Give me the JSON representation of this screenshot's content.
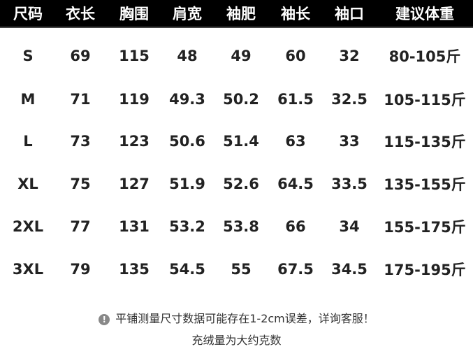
{
  "table": {
    "headers": [
      "尺码",
      "衣长",
      "胸围",
      "肩宽",
      "袖肥",
      "袖长",
      "袖口",
      "建议体重"
    ],
    "rows": [
      [
        "S",
        "69",
        "115",
        "48",
        "49",
        "60",
        "32",
        "80-105斤"
      ],
      [
        "M",
        "71",
        "119",
        "49.3",
        "50.2",
        "61.5",
        "32.5",
        "105-115斤"
      ],
      [
        "L",
        "73",
        "123",
        "50.6",
        "51.4",
        "63",
        "33",
        "115-135斤"
      ],
      [
        "XL",
        "75",
        "127",
        "51.9",
        "52.6",
        "64.5",
        "33.5",
        "135-155斤"
      ],
      [
        "2XL",
        "77",
        "131",
        "53.2",
        "53.8",
        "66",
        "34",
        "155-175斤"
      ],
      [
        "3XL",
        "79",
        "135",
        "54.5",
        "55",
        "67.5",
        "34.5",
        "175-195斤"
      ]
    ]
  },
  "notes": {
    "icon": "exclamation-circle-icon",
    "line1": "平铺测量尺寸数据可能存在1-2cm误差，详询客服！",
    "line2": "充绒量为大约克数"
  },
  "colors": {
    "header_bg": "#000000",
    "header_text": "#ffffff",
    "body_text": "#222222"
  }
}
